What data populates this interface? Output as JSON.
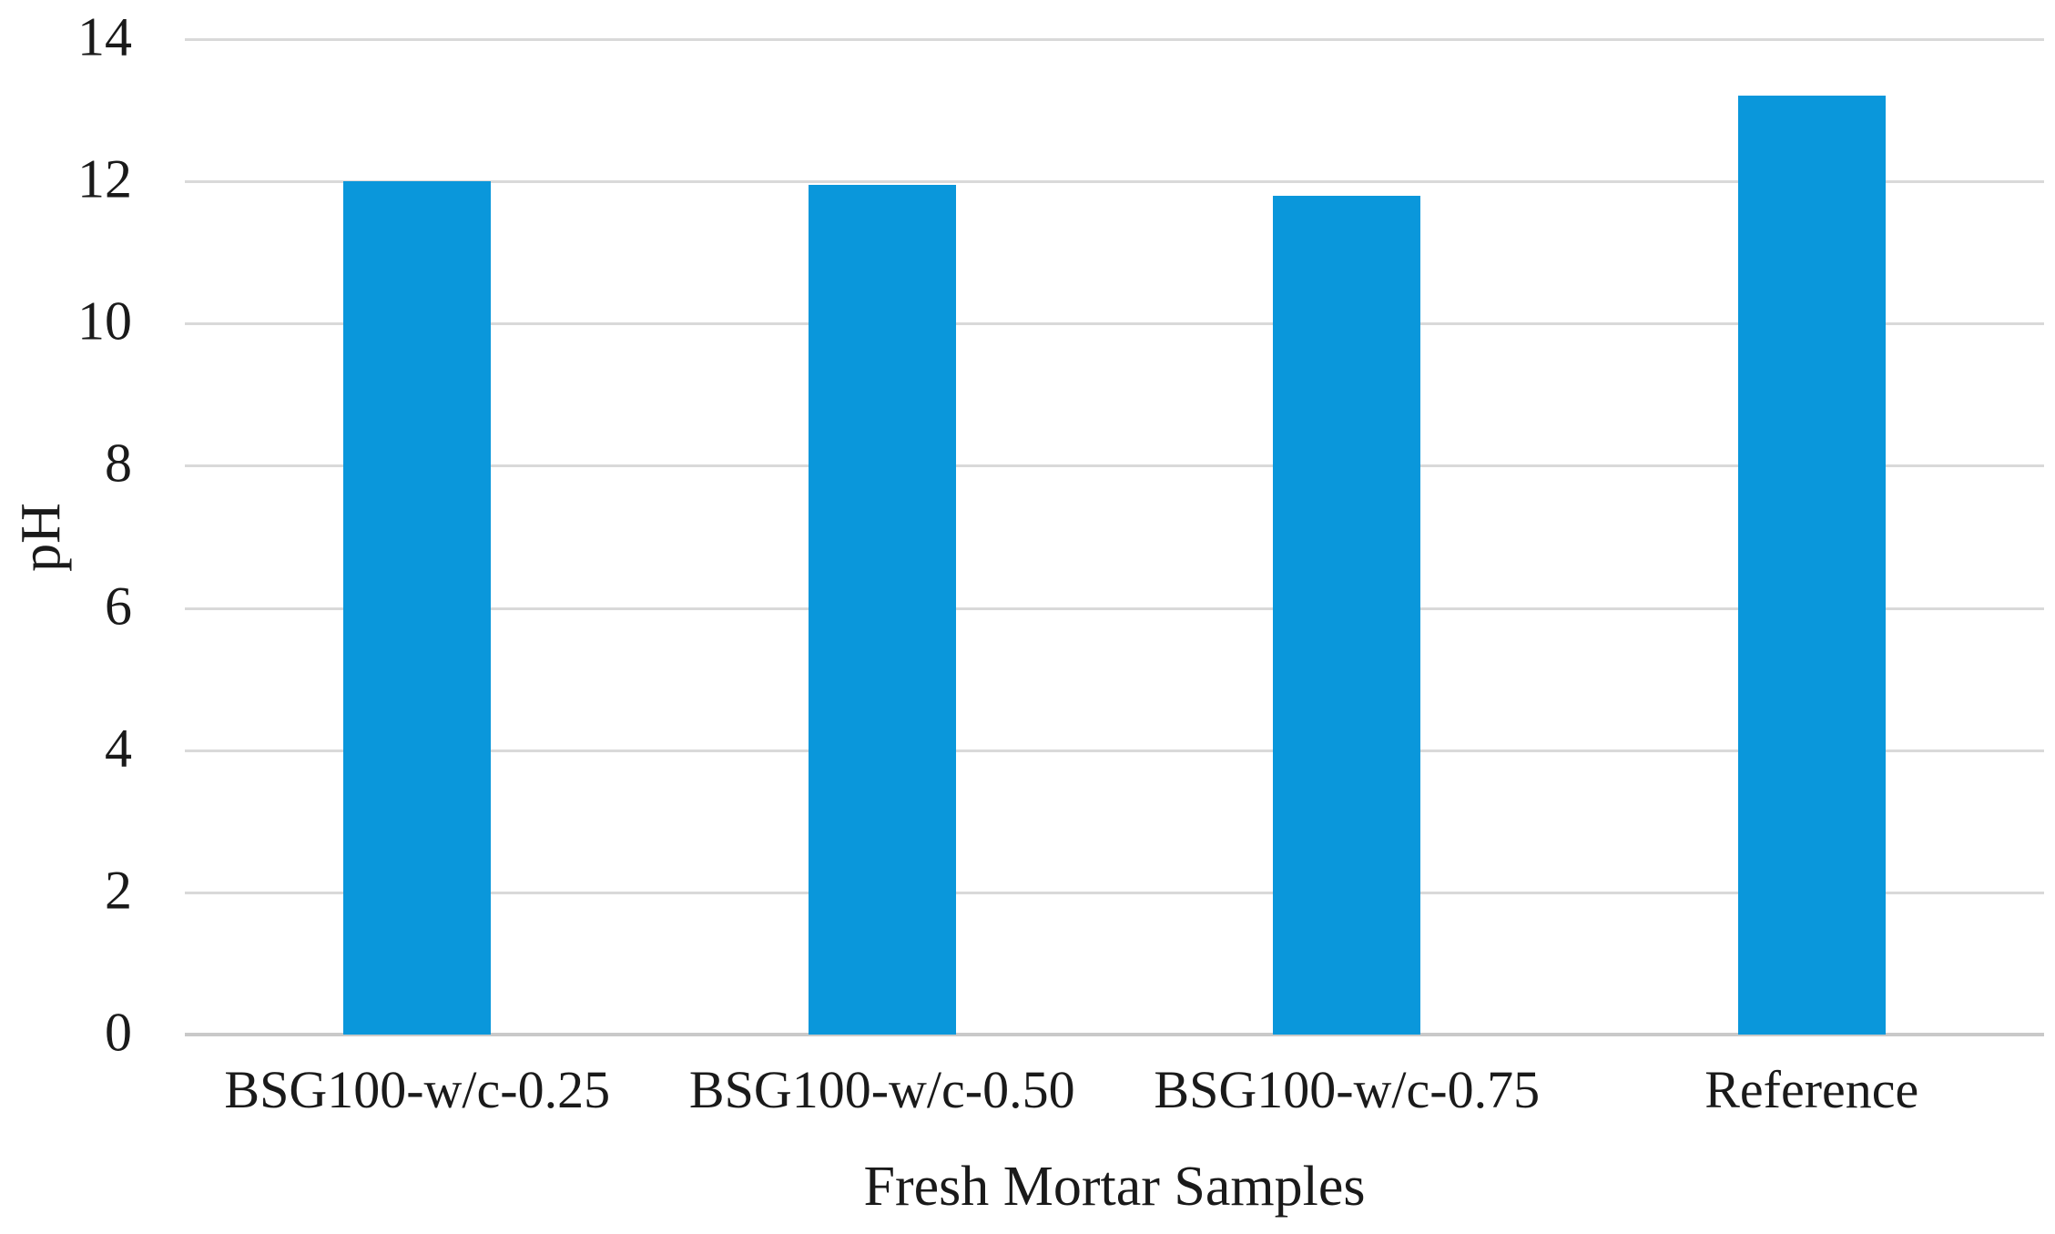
{
  "chart_data": {
    "type": "bar",
    "categories": [
      "BSG100-w/c-0.25",
      "BSG100-w/c-0.50",
      "BSG100-w/c-0.75",
      "Reference"
    ],
    "values": [
      12.0,
      11.95,
      11.8,
      13.2
    ],
    "title": "",
    "xlabel": "Fresh Mortar Samples",
    "ylabel": "pH",
    "ylim": [
      0,
      14
    ],
    "yticks": [
      0,
      2,
      4,
      6,
      8,
      10,
      12,
      14
    ],
    "grid": "horizontal-only",
    "legend_position": "none",
    "colors": {
      "bar": "#0A97DB",
      "gridline": "#D9D9D9",
      "axis_line": "#C9C9C9",
      "text": "#1A1A1A",
      "background": "#FFFFFF"
    }
  }
}
